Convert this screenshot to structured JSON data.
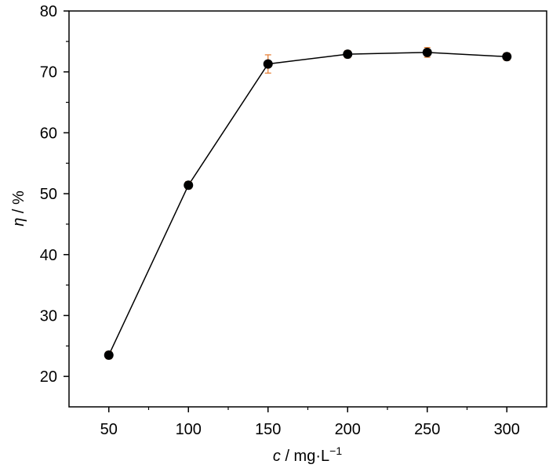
{
  "chart_data": {
    "type": "line",
    "title": "",
    "xlabel": {
      "symbol": "c",
      "unit": " / mg·L",
      "sup": "−1"
    },
    "ylabel": {
      "symbol": "η",
      "unit": " / %"
    },
    "x": [
      50,
      100,
      150,
      200,
      250,
      300
    ],
    "series": [
      {
        "values": [
          23.5,
          51.4,
          71.3,
          72.9,
          73.2,
          72.5
        ],
        "errors": [
          0.6,
          0.6,
          1.5,
          0.6,
          0.8,
          0.6
        ]
      }
    ],
    "xlim": [
      25,
      325
    ],
    "ylim": [
      15,
      80
    ],
    "xticks": [
      "50",
      "100",
      "150",
      "200",
      "250",
      "300"
    ],
    "yticks": [
      "20",
      "30",
      "40",
      "50",
      "60",
      "70",
      "80"
    ],
    "grid": false,
    "colors": {
      "line": "#000000",
      "marker": "#000000",
      "error_bar": "#e8823a"
    }
  }
}
